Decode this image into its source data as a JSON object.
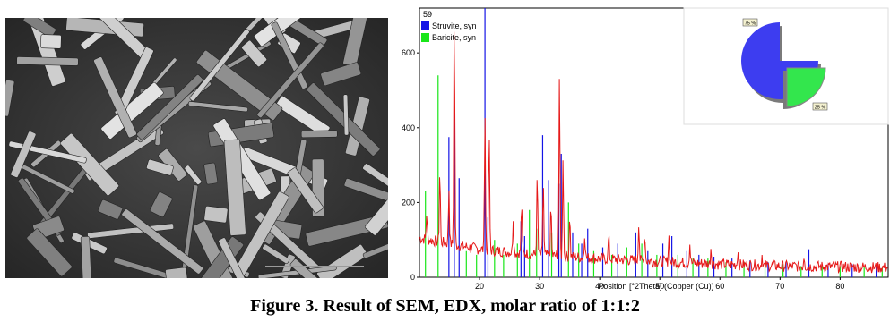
{
  "figure": {
    "caption": "Figure 3. Result of SEM, EDX, molar ratio of 1:1:2"
  },
  "sem_image": {
    "description_icon": "sem-micrograph-icon"
  },
  "chart_data": {
    "type": "line",
    "count_label": "59",
    "xlabel": "Position [°2Theta] (Copper (Cu))",
    "ylabel": "",
    "xlim": [
      10,
      88
    ],
    "ylim": [
      0,
      720
    ],
    "x_ticks": [
      20,
      30,
      40,
      50,
      60,
      70,
      80
    ],
    "y_ticks": [
      0,
      200,
      400,
      600
    ],
    "legend": [
      {
        "name": "Struvite, syn",
        "color": "#1414e6"
      },
      {
        "name": "Baricite, syn",
        "color": "#19e619"
      }
    ],
    "observed_color": "#e61919",
    "baseline": {
      "x": [
        10,
        20,
        30,
        40,
        50,
        60,
        70,
        80,
        88
      ],
      "y": [
        105,
        75,
        60,
        50,
        42,
        35,
        30,
        28,
        26
      ]
    },
    "observed_peaks": [
      {
        "x": 11.2,
        "y": 170
      },
      {
        "x": 13.4,
        "y": 290
      },
      {
        "x": 14.9,
        "y": 240
      },
      {
        "x": 15.8,
        "y": 720
      },
      {
        "x": 20.9,
        "y": 440
      },
      {
        "x": 21.6,
        "y": 390
      },
      {
        "x": 25.6,
        "y": 160
      },
      {
        "x": 27.0,
        "y": 200
      },
      {
        "x": 29.6,
        "y": 270
      },
      {
        "x": 30.6,
        "y": 260
      },
      {
        "x": 31.9,
        "y": 190
      },
      {
        "x": 33.3,
        "y": 545
      },
      {
        "x": 33.9,
        "y": 330
      },
      {
        "x": 35.0,
        "y": 170
      },
      {
        "x": 37.5,
        "y": 120
      },
      {
        "x": 41.5,
        "y": 110
      },
      {
        "x": 46.5,
        "y": 150
      },
      {
        "x": 47.5,
        "y": 120
      },
      {
        "x": 51.5,
        "y": 110
      },
      {
        "x": 55.0,
        "y": 90
      },
      {
        "x": 58.5,
        "y": 80
      },
      {
        "x": 63.0,
        "y": 70
      },
      {
        "x": 67.0,
        "y": 60
      },
      {
        "x": 74.0,
        "y": 60
      }
    ],
    "struvite_sticks": [
      {
        "x": 14.9,
        "y": 375
      },
      {
        "x": 15.8,
        "y": 505
      },
      {
        "x": 16.6,
        "y": 265
      },
      {
        "x": 20.9,
        "y": 720
      },
      {
        "x": 21.4,
        "y": 160
      },
      {
        "x": 26.9,
        "y": 150
      },
      {
        "x": 27.5,
        "y": 110
      },
      {
        "x": 30.5,
        "y": 380
      },
      {
        "x": 31.5,
        "y": 260
      },
      {
        "x": 33.2,
        "y": 250
      },
      {
        "x": 33.6,
        "y": 330
      },
      {
        "x": 35.5,
        "y": 120
      },
      {
        "x": 37.0,
        "y": 90
      },
      {
        "x": 38.0,
        "y": 130
      },
      {
        "x": 40.5,
        "y": 80
      },
      {
        "x": 43.0,
        "y": 90
      },
      {
        "x": 46.0,
        "y": 120
      },
      {
        "x": 48.0,
        "y": 70
      },
      {
        "x": 50.5,
        "y": 90
      },
      {
        "x": 52.0,
        "y": 110
      },
      {
        "x": 54.5,
        "y": 70
      },
      {
        "x": 56.5,
        "y": 60
      },
      {
        "x": 59.0,
        "y": 55
      },
      {
        "x": 62.0,
        "y": 50
      },
      {
        "x": 65.0,
        "y": 45
      },
      {
        "x": 68.0,
        "y": 40
      },
      {
        "x": 71.0,
        "y": 40
      },
      {
        "x": 74.8,
        "y": 75
      },
      {
        "x": 78.0,
        "y": 35
      },
      {
        "x": 82.0,
        "y": 35
      },
      {
        "x": 86.0,
        "y": 30
      }
    ],
    "baricite_sticks": [
      {
        "x": 11.0,
        "y": 230
      },
      {
        "x": 13.1,
        "y": 540
      },
      {
        "x": 17.8,
        "y": 70
      },
      {
        "x": 19.5,
        "y": 60
      },
      {
        "x": 22.5,
        "y": 100
      },
      {
        "x": 24.0,
        "y": 60
      },
      {
        "x": 26.3,
        "y": 90
      },
      {
        "x": 28.3,
        "y": 180
      },
      {
        "x": 29.5,
        "y": 130
      },
      {
        "x": 32.0,
        "y": 120
      },
      {
        "x": 34.8,
        "y": 200
      },
      {
        "x": 36.5,
        "y": 90
      },
      {
        "x": 39.0,
        "y": 70
      },
      {
        "x": 42.0,
        "y": 60
      },
      {
        "x": 44.5,
        "y": 80
      },
      {
        "x": 47.0,
        "y": 90
      },
      {
        "x": 49.5,
        "y": 60
      },
      {
        "x": 53.0,
        "y": 60
      },
      {
        "x": 55.5,
        "y": 50
      },
      {
        "x": 58.0,
        "y": 50
      },
      {
        "x": 61.0,
        "y": 40
      },
      {
        "x": 64.0,
        "y": 40
      },
      {
        "x": 67.5,
        "y": 35
      },
      {
        "x": 70.5,
        "y": 35
      },
      {
        "x": 73.5,
        "y": 30
      },
      {
        "x": 77.0,
        "y": 30
      },
      {
        "x": 80.0,
        "y": 30
      },
      {
        "x": 84.0,
        "y": 28
      },
      {
        "x": 87.0,
        "y": 25
      }
    ],
    "pie": {
      "slices": [
        {
          "name": "Struvite, syn",
          "value": 75,
          "label": "75 %",
          "color": "#3d3df0"
        },
        {
          "name": "Baricite, syn",
          "value": 25,
          "label": "25 %",
          "color": "#33e64d"
        }
      ]
    }
  }
}
